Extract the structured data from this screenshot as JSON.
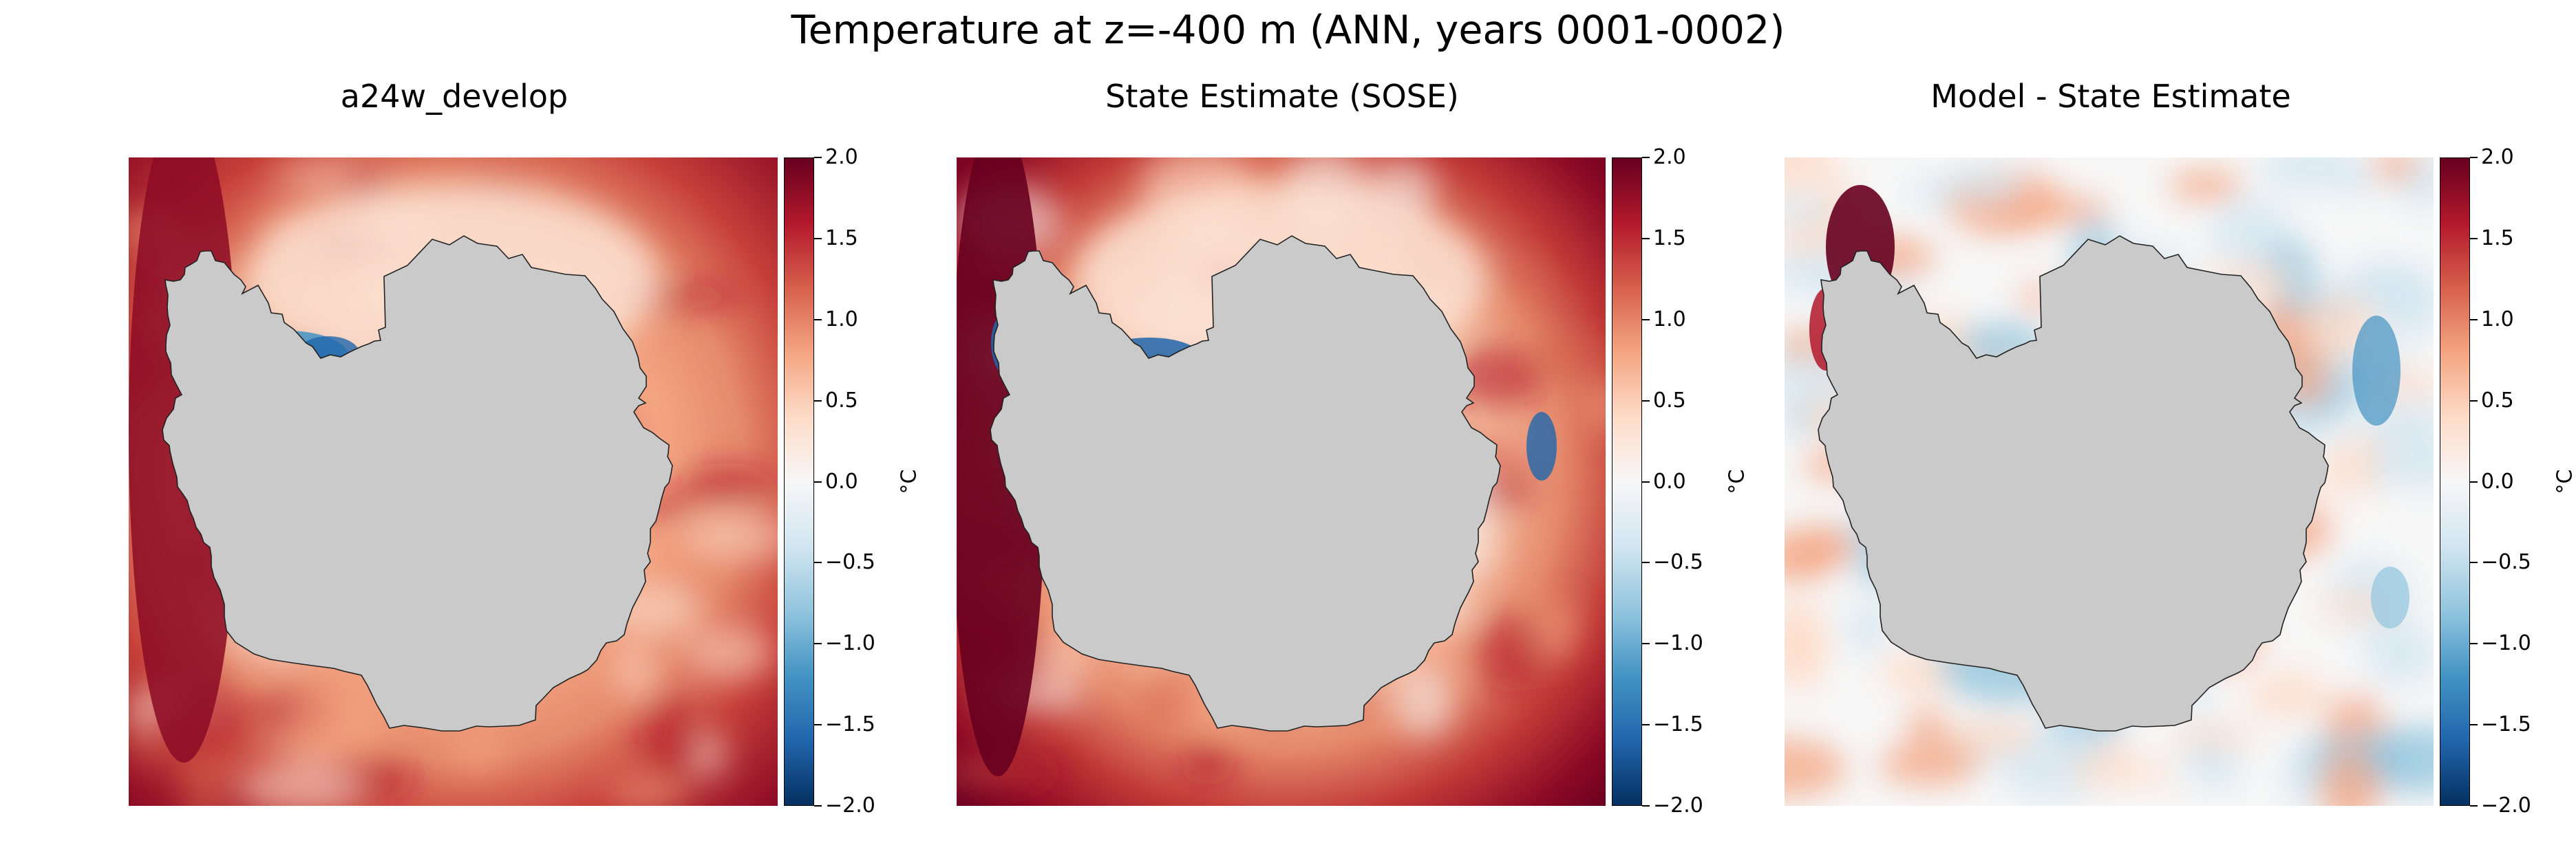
{
  "suptitle": "Temperature at z=-400 m (ANN, years 0001-0002)",
  "colorbar": {
    "ticks": [
      "2.0",
      "1.5",
      "1.0",
      "0.5",
      "0.0",
      "−0.5",
      "−1.0",
      "−1.5",
      "−2.0"
    ],
    "unit": "°C",
    "colors": [
      "#053061",
      "#2166ac",
      "#4393c3",
      "#92c5de",
      "#d1e5f0",
      "#f7f7f7",
      "#fddbc7",
      "#f4a582",
      "#d6604d",
      "#b2182b",
      "#67001f"
    ]
  },
  "land_color": "#cacaca",
  "chart_data": [
    {
      "type": "heatmap",
      "title": "a24w_develop",
      "vmin": -2.0,
      "vmax": 2.0,
      "unit": "°C"
    },
    {
      "type": "heatmap",
      "title": "State Estimate (SOSE)",
      "vmin": -2.0,
      "vmax": 2.0,
      "unit": "°C"
    },
    {
      "type": "heatmap",
      "title": "Model - State Estimate",
      "vmin": -2.0,
      "vmax": 2.0,
      "unit": "°C"
    }
  ]
}
